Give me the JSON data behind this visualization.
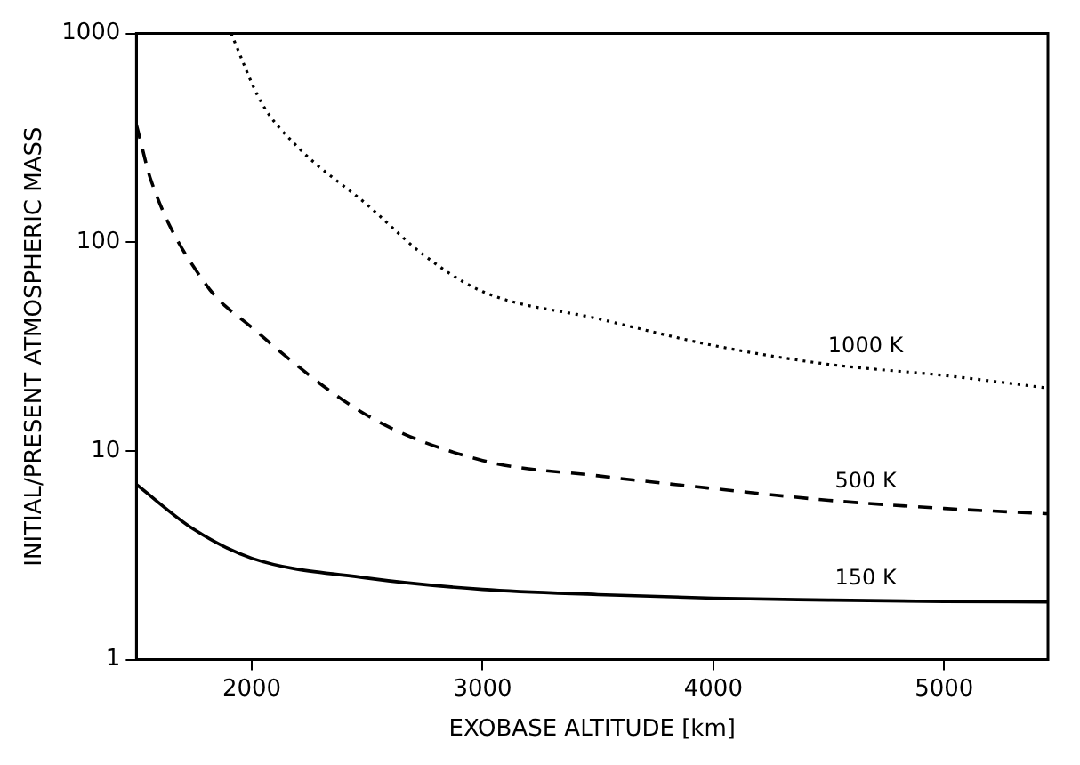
{
  "chart_data": {
    "type": "line",
    "xlabel": "EXOBASE ALTITUDE [km]",
    "ylabel": "INITIAL/PRESENT ATMOSPHERIC MASS",
    "xlim": [
      1500,
      5450
    ],
    "xticks": [
      2000,
      3000,
      4000,
      5000
    ],
    "ylim": [
      1,
      1000
    ],
    "yticks": [
      1,
      10,
      100,
      1000
    ],
    "log": "y",
    "grid": false,
    "legend": false,
    "marker": "none",
    "series": [
      {
        "name": "1000 K",
        "color": "#000000",
        "line_style": "dotted",
        "x": [
          1910,
          2040,
          2200,
          2500,
          2750,
          3000,
          3500,
          4000,
          4500,
          5000,
          5450
        ],
        "values": [
          1000,
          470,
          285,
          151,
          86,
          58,
          43,
          32,
          26,
          23,
          20
        ]
      },
      {
        "name": "500 K",
        "color": "#000000",
        "line_style": "dashed",
        "x": [
          1500,
          1565,
          1800,
          2000,
          2500,
          3000,
          3500,
          4000,
          4500,
          5000,
          5450
        ],
        "values": [
          365,
          195,
          63,
          39,
          14.8,
          9,
          7.6,
          6.6,
          5.8,
          5.3,
          5.0
        ]
      },
      {
        "name": "150 K",
        "color": "#000000",
        "line_style": "solid",
        "x": [
          1500,
          1750,
          2000,
          2500,
          3000,
          3500,
          4000,
          4500,
          5000,
          5450
        ],
        "values": [
          6.9,
          4.2,
          3.06,
          2.46,
          2.17,
          2.05,
          1.97,
          1.93,
          1.9,
          1.89
        ]
      }
    ]
  }
}
